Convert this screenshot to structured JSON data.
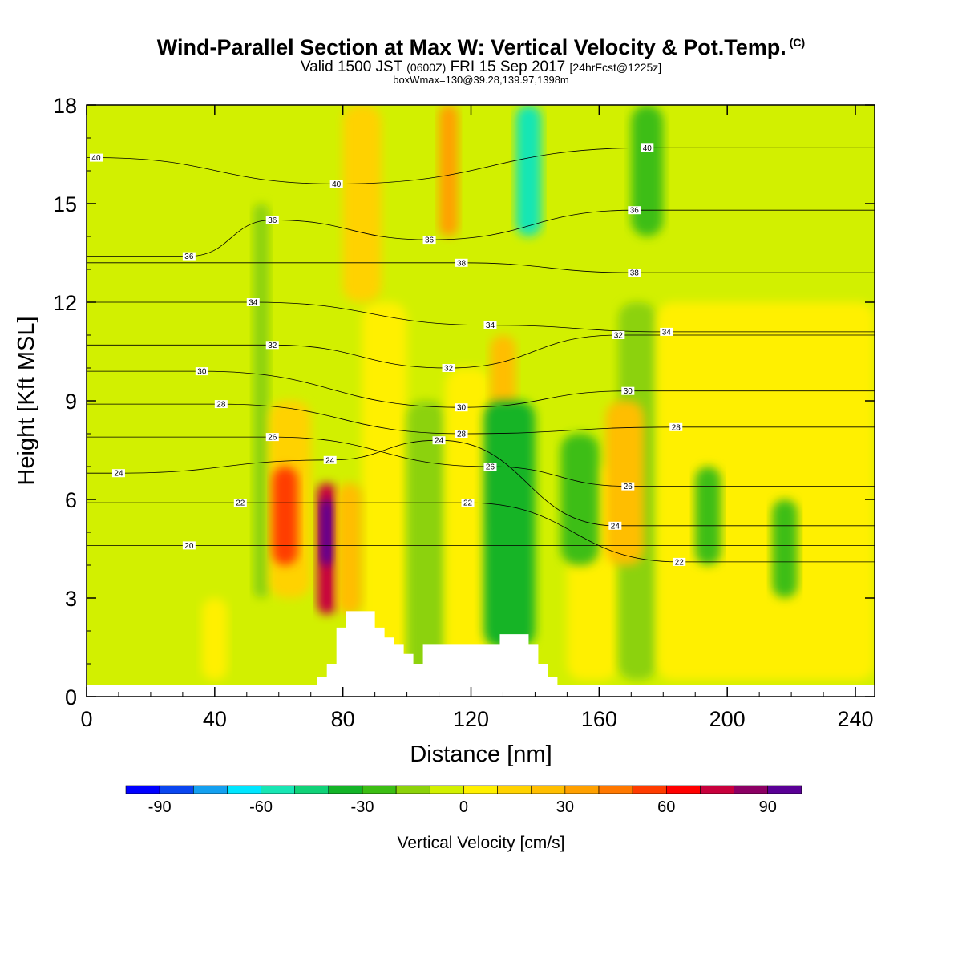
{
  "header": {
    "title": "Wind-Parallel Section at Max W: Vertical Velocity & Pot.Temp.",
    "copyright_mark": "(C)",
    "valid_line": {
      "prefix": "Valid 1500 JST",
      "utc": "(0600Z)",
      "date": "FRI 15 Sep 2017",
      "forecast": "[24hrFcst@1225z]"
    },
    "box_line": "boxWmax=130@39.28,139.97,1398m"
  },
  "chart_data": {
    "type": "heatmap",
    "overlay": "contour",
    "xlabel": "Distance [nm]",
    "ylabel": "Height [Kft MSL]",
    "xlim": [
      0,
      246
    ],
    "ylim": [
      0,
      18
    ],
    "x_ticks": [
      0,
      40,
      80,
      120,
      160,
      200,
      240
    ],
    "y_ticks": [
      0,
      3,
      6,
      9,
      12,
      15,
      18
    ],
    "grid": false,
    "colorbar": {
      "label": "Vertical Velocity [cm/s]",
      "placement": "bottom",
      "tick_labels": [
        "-90",
        "-60",
        "-30",
        "0",
        "30",
        "60",
        "90"
      ],
      "tick_values": [
        -90,
        -60,
        -30,
        0,
        30,
        60,
        90
      ],
      "bins": [
        -100,
        -90,
        -80,
        -70,
        -60,
        -50,
        -40,
        -30,
        -20,
        -10,
        0,
        10,
        20,
        30,
        40,
        50,
        60,
        70,
        80,
        90,
        100,
        110
      ],
      "colors": [
        "#0000ff",
        "#0a46f0",
        "#14a0f0",
        "#00e6ff",
        "#18e6b4",
        "#10d278",
        "#14b428",
        "#3cbe14",
        "#8cd20a",
        "#d2f000",
        "#fff000",
        "#ffd200",
        "#ffbe00",
        "#ffa000",
        "#ff7800",
        "#ff3c00",
        "#ff0000",
        "#c8003c",
        "#8c0064",
        "#5a0096"
      ]
    },
    "background_w": -5,
    "w_cells": [
      {
        "x": [
          0,
          246
        ],
        "z": [
          0,
          18
        ],
        "w": -5
      },
      {
        "x": [
          86,
          100
        ],
        "z": [
          0.5,
          12
        ],
        "w": 5
      },
      {
        "x": [
          100,
          112
        ],
        "z": [
          0.5,
          9
        ],
        "w": -15
      },
      {
        "x": [
          112,
          126
        ],
        "z": [
          0.5,
          10
        ],
        "w": 5
      },
      {
        "x": [
          150,
          166
        ],
        "z": [
          0.5,
          7
        ],
        "w": 5
      },
      {
        "x": [
          166,
          178
        ],
        "z": [
          0.5,
          12
        ],
        "w": -15
      },
      {
        "x": [
          178,
          246
        ],
        "z": [
          0.5,
          12
        ],
        "w": 5
      },
      {
        "x": [
          36,
          44
        ],
        "z": [
          0.5,
          3
        ],
        "w": 5
      },
      {
        "x": [
          52,
          57
        ],
        "z": [
          3,
          15
        ],
        "w": -15
      },
      {
        "x": [
          57,
          70
        ],
        "z": [
          3,
          9
        ],
        "w": 15
      },
      {
        "x": [
          58,
          66
        ],
        "z": [
          4,
          7
        ],
        "w": 55
      },
      {
        "x": [
          72,
          78
        ],
        "z": [
          2.5,
          6.5
        ],
        "w": 70
      },
      {
        "x": [
          73,
          77
        ],
        "z": [
          4,
          6
        ],
        "w": 105
      },
      {
        "x": [
          78,
          86
        ],
        "z": [
          2.5,
          6.5
        ],
        "w": 25
      },
      {
        "x": [
          80,
          92
        ],
        "z": [
          12,
          18
        ],
        "w": 15
      },
      {
        "x": [
          110,
          116
        ],
        "z": [
          14,
          18
        ],
        "w": 35
      },
      {
        "x": [
          126,
          134
        ],
        "z": [
          5,
          11
        ],
        "w": 25
      },
      {
        "x": [
          124,
          140
        ],
        "z": [
          1.5,
          9
        ],
        "w": -35
      },
      {
        "x": [
          134,
          142
        ],
        "z": [
          14,
          18
        ],
        "w": -55
      },
      {
        "x": [
          148,
          160
        ],
        "z": [
          4,
          8
        ],
        "w": -25
      },
      {
        "x": [
          162,
          174
        ],
        "z": [
          4,
          9
        ],
        "w": 25
      },
      {
        "x": [
          170,
          180
        ],
        "z": [
          14,
          18
        ],
        "w": -25
      },
      {
        "x": [
          190,
          198
        ],
        "z": [
          4,
          7
        ],
        "w": -25
      },
      {
        "x": [
          214,
          222
        ],
        "z": [
          3,
          6
        ],
        "w": -25
      }
    ],
    "theta_contours": [
      {
        "level": 20,
        "label_at": [
          32,
          4.6
        ]
      },
      {
        "level": 22,
        "label_at": [
          48,
          5.9
        ]
      },
      {
        "level": 22,
        "label_at": [
          119,
          5.9
        ]
      },
      {
        "level": 22,
        "label_at": [
          185,
          4.1
        ]
      },
      {
        "level": 24,
        "label_at": [
          10,
          6.8
        ]
      },
      {
        "level": 24,
        "label_at": [
          76,
          7.2
        ]
      },
      {
        "level": 24,
        "label_at": [
          110,
          7.8
        ]
      },
      {
        "level": 24,
        "label_at": [
          165,
          5.2
        ]
      },
      {
        "level": 26,
        "label_at": [
          58,
          7.9
        ]
      },
      {
        "level": 26,
        "label_at": [
          126,
          7.0
        ]
      },
      {
        "level": 26,
        "label_at": [
          169,
          6.4
        ]
      },
      {
        "level": 28,
        "label_at": [
          42,
          8.9
        ]
      },
      {
        "level": 28,
        "label_at": [
          117,
          8.0
        ]
      },
      {
        "level": 28,
        "label_at": [
          184,
          8.2
        ]
      },
      {
        "level": 30,
        "label_at": [
          36,
          9.9
        ]
      },
      {
        "level": 30,
        "label_at": [
          117,
          8.8
        ]
      },
      {
        "level": 30,
        "label_at": [
          169,
          9.3
        ]
      },
      {
        "level": 32,
        "label_at": [
          58,
          10.7
        ]
      },
      {
        "level": 32,
        "label_at": [
          113,
          10.0
        ]
      },
      {
        "level": 32,
        "label_at": [
          166,
          11.0
        ]
      },
      {
        "level": 34,
        "label_at": [
          52,
          12.0
        ]
      },
      {
        "level": 34,
        "label_at": [
          126,
          11.3
        ]
      },
      {
        "level": 34,
        "label_at": [
          181,
          11.1
        ]
      },
      {
        "level": 36,
        "label_at": [
          32,
          13.4
        ]
      },
      {
        "level": 36,
        "label_at": [
          58,
          14.5
        ]
      },
      {
        "level": 36,
        "label_at": [
          107,
          13.9
        ]
      },
      {
        "level": 36,
        "label_at": [
          171,
          14.8
        ]
      },
      {
        "level": 38,
        "label_at": [
          117,
          13.2
        ]
      },
      {
        "level": 38,
        "label_at": [
          171,
          12.9
        ]
      },
      {
        "level": 40,
        "label_at": [
          3,
          16.4
        ]
      },
      {
        "level": 40,
        "label_at": [
          78,
          15.6
        ]
      },
      {
        "level": 40,
        "label_at": [
          175,
          16.7
        ]
      }
    ],
    "terrain_top_kft": [
      [
        69,
        0.3
      ],
      [
        72,
        0.6
      ],
      [
        75,
        1.0
      ],
      [
        78,
        2.1
      ],
      [
        81,
        2.6
      ],
      [
        87,
        2.6
      ],
      [
        90,
        2.1
      ],
      [
        93,
        1.8
      ],
      [
        96,
        1.6
      ],
      [
        99,
        1.3
      ],
      [
        102,
        1.0
      ],
      [
        105,
        1.6
      ],
      [
        126,
        1.6
      ],
      [
        129,
        1.9
      ],
      [
        136,
        1.9
      ],
      [
        138,
        1.6
      ],
      [
        141,
        1.0
      ],
      [
        144,
        0.6
      ],
      [
        147,
        0.3
      ]
    ]
  }
}
